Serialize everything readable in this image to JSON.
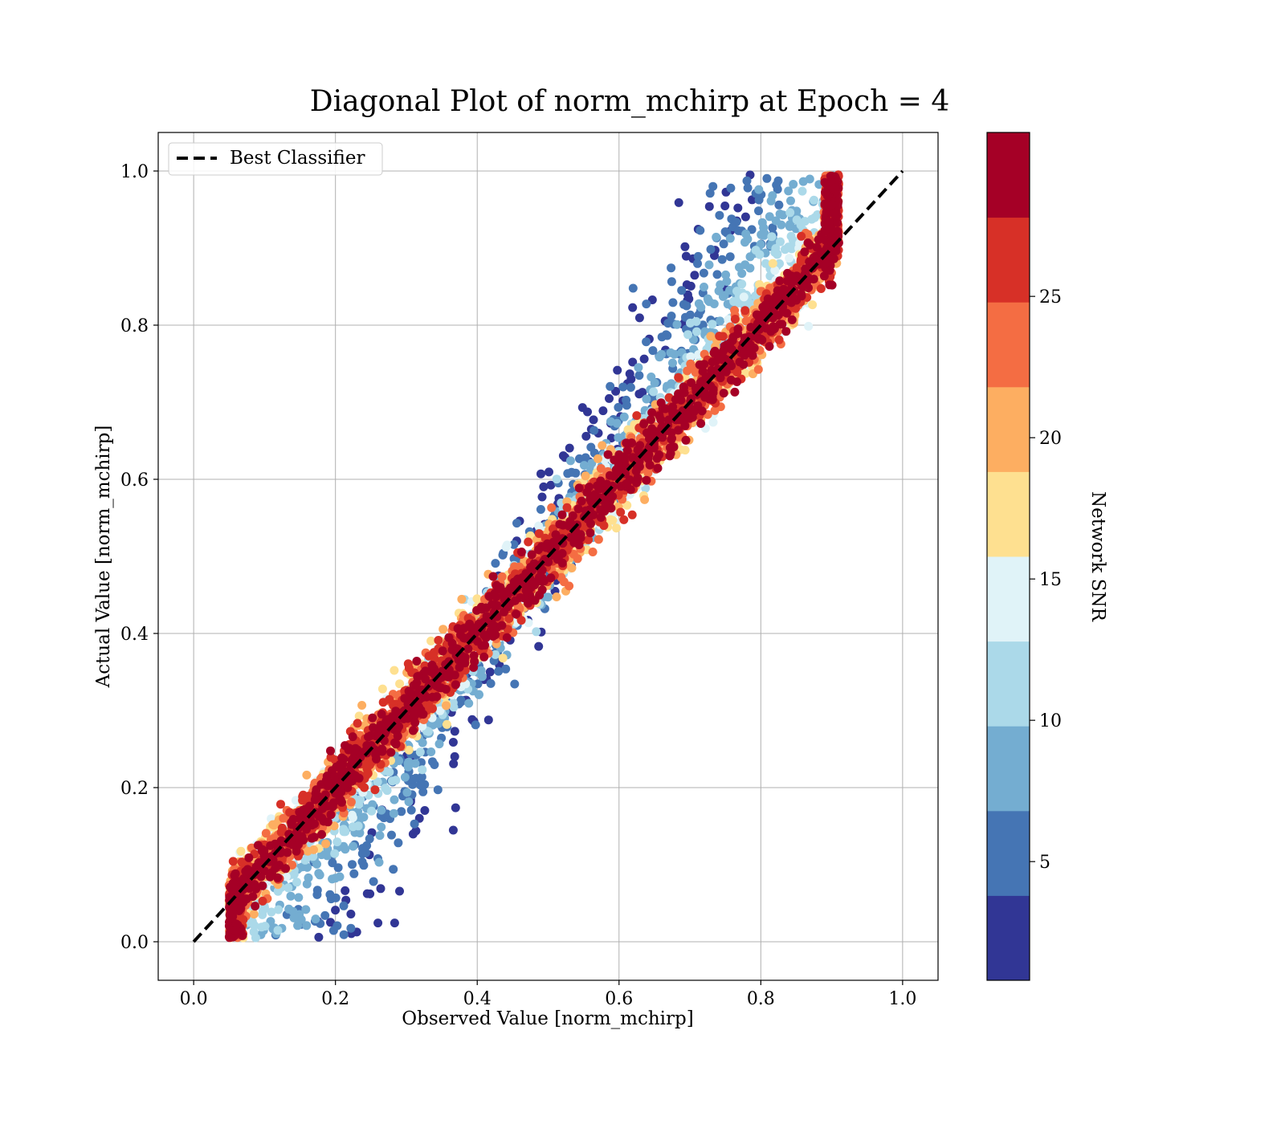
{
  "chart_data": {
    "type": "scatter",
    "title": "Diagonal Plot of norm_mchirp at Epoch = 4",
    "xlabel": "Observed Value [norm_mchirp]",
    "ylabel": "Actual Value [norm_mchirp]",
    "xlim": [
      -0.05,
      1.05
    ],
    "ylim": [
      -0.05,
      1.05
    ],
    "xticks": [
      "0.0",
      "0.2",
      "0.4",
      "0.6",
      "0.8",
      "1.0"
    ],
    "yticks": [
      "0.0",
      "0.2",
      "0.4",
      "0.6",
      "0.8",
      "1.0"
    ],
    "grid": true,
    "legend": {
      "position": "top-left",
      "entries": [
        "Best Classifier"
      ]
    },
    "diagonal_line": {
      "name": "Best Classifier",
      "x": [
        0.0,
        1.0
      ],
      "y": [
        0.0,
        1.0
      ],
      "style": "dashed",
      "color": "#000000"
    },
    "colorbar": {
      "label": "Network SNR",
      "range": [
        0.8,
        30.8
      ],
      "ticks": [
        "5",
        "10",
        "15",
        "20",
        "25"
      ],
      "bin_colors": [
        "#313695",
        "#4575b4",
        "#74add1",
        "#abd9e9",
        "#e0f3f8",
        "#fee090",
        "#fdae61",
        "#f46d43",
        "#d73027",
        "#a50026"
      ]
    },
    "series_description_points": [
      {
        "x": 0.05,
        "y": 0.01
      },
      {
        "x": 0.2,
        "y": 0.2
      },
      {
        "x": 0.4,
        "y": 0.4
      },
      {
        "x": 0.6,
        "y": 0.6
      },
      {
        "x": 0.8,
        "y": 0.8
      },
      {
        "x": 0.9,
        "y": 0.93
      }
    ]
  },
  "colors": {
    "axes": "#000000",
    "grid": "#b0b0b0"
  }
}
